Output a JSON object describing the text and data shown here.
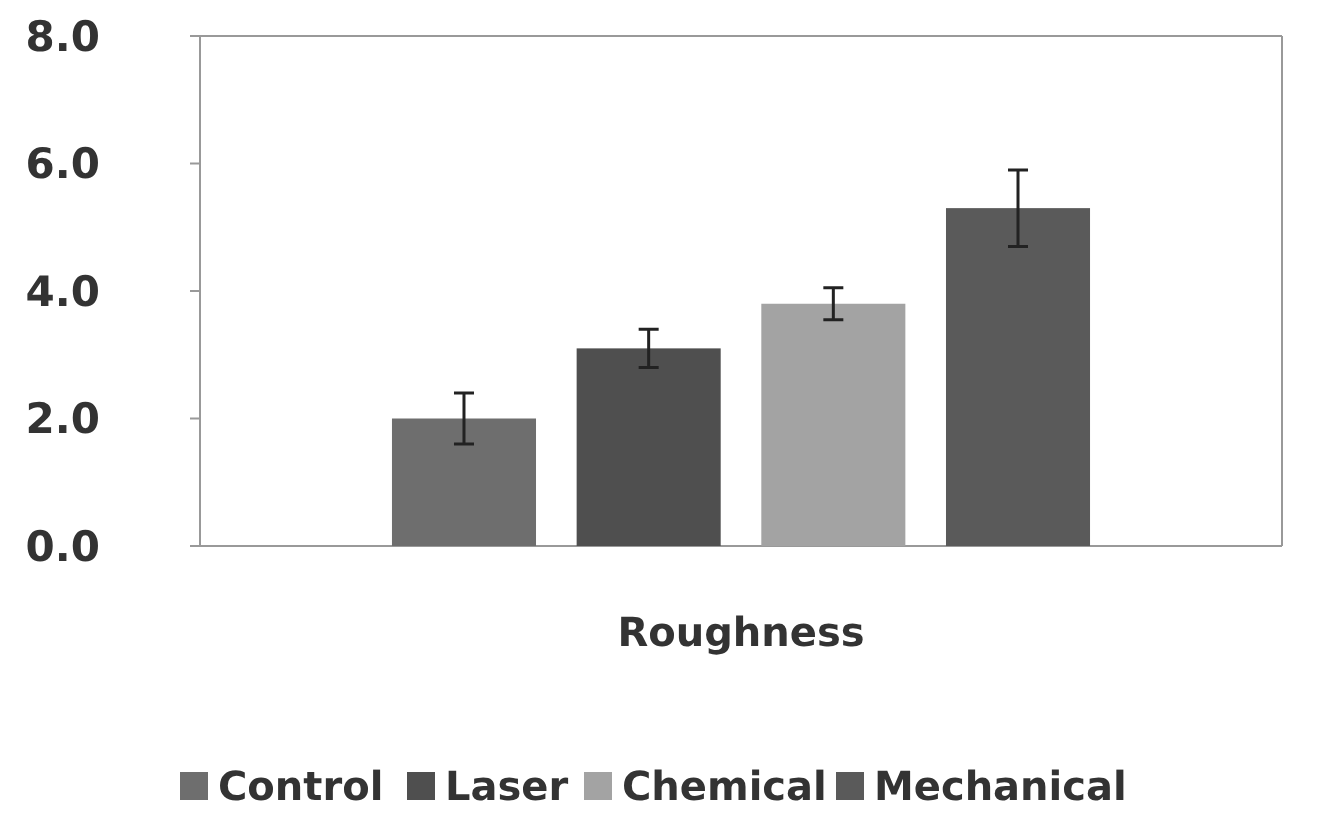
{
  "chart_data": {
    "type": "bar",
    "categories": [
      "Roughness"
    ],
    "series": [
      {
        "name": "Control",
        "color": "#6e6e6e",
        "values": [
          2.0
        ],
        "errors": [
          0.4
        ]
      },
      {
        "name": "Laser",
        "color": "#4f4f4f",
        "values": [
          3.1
        ],
        "errors": [
          0.3
        ]
      },
      {
        "name": "Chemical",
        "color": "#a3a3a3",
        "values": [
          3.8
        ],
        "errors": [
          0.25
        ]
      },
      {
        "name": "Mechanical",
        "color": "#5a5a5a",
        "values": [
          5.3
        ],
        "errors": [
          0.6
        ]
      }
    ],
    "ylim": [
      0,
      8
    ],
    "yticks": [
      {
        "value": 0,
        "label": "0.0"
      },
      {
        "value": 2,
        "label": "2.0"
      },
      {
        "value": 4,
        "label": "4.0"
      },
      {
        "value": 6,
        "label": "6.0"
      },
      {
        "value": 8,
        "label": "8.0"
      }
    ],
    "grid": false,
    "legend": "bottom"
  }
}
